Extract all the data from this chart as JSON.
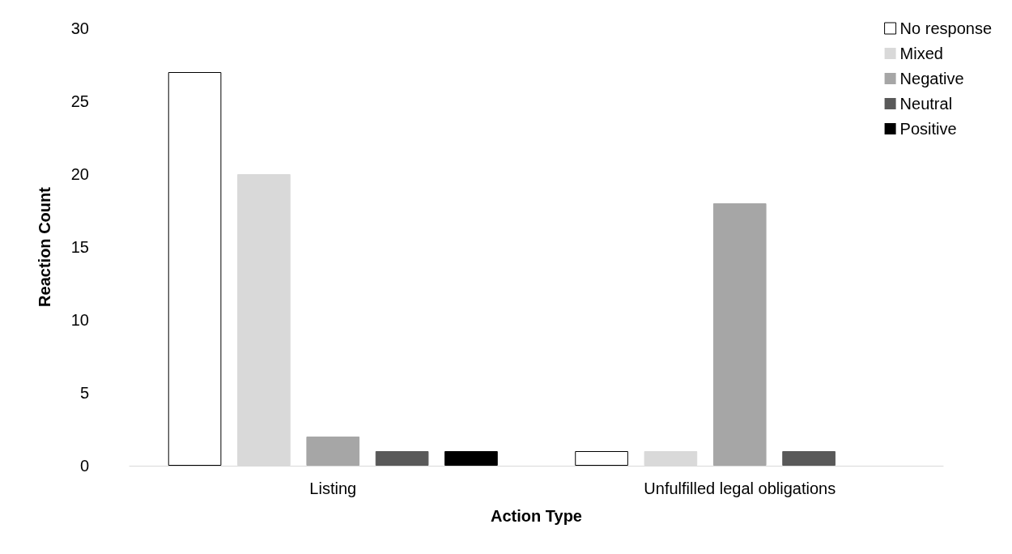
{
  "chart_data": {
    "type": "bar",
    "xlabel": "Action Type",
    "ylabel": "Reaction Count",
    "categories": [
      "Listing",
      "Unfulfilled legal obligations"
    ],
    "series": [
      {
        "name": "No response",
        "color": "#ffffff",
        "values": [
          27,
          1
        ]
      },
      {
        "name": "Mixed",
        "color": "#d9d9d9",
        "values": [
          20,
          1
        ]
      },
      {
        "name": "Negative",
        "color": "#a6a6a6",
        "values": [
          2,
          18
        ]
      },
      {
        "name": "Neutral",
        "color": "#595959",
        "values": [
          1,
          1
        ]
      },
      {
        "name": "Positive",
        "color": "#000000",
        "values": [
          1,
          null
        ]
      }
    ],
    "ylim": [
      0,
      30
    ],
    "yticks": [
      0,
      5,
      10,
      15,
      20,
      25,
      30
    ],
    "grid": false,
    "legend": "top right"
  }
}
